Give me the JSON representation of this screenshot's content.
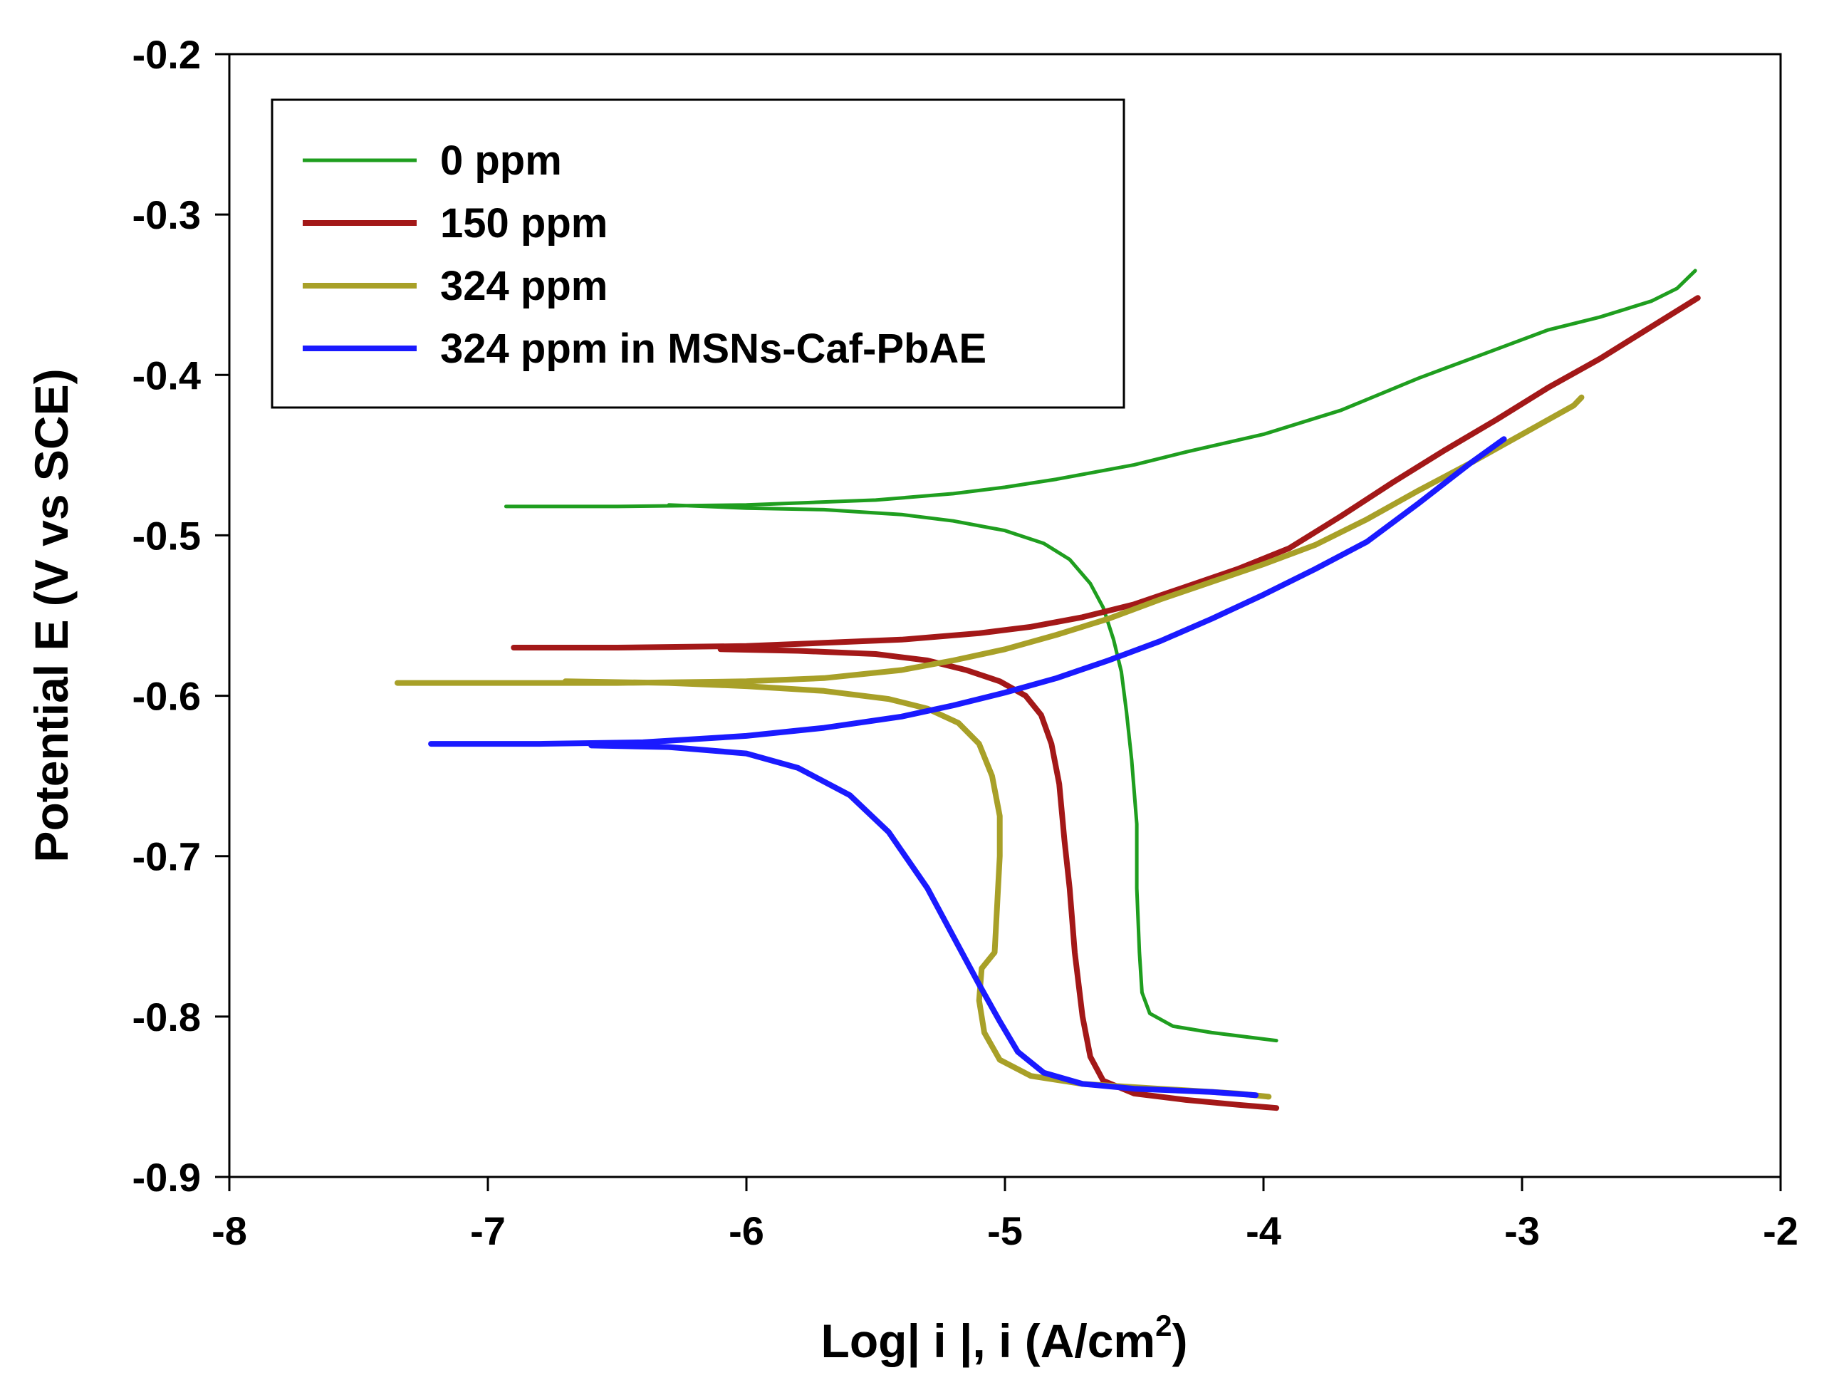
{
  "chart_data": {
    "type": "line",
    "title": "",
    "xlabel": "Log| i |, i (A/cm",
    "xlabel_superscript": "2",
    "xlabel_suffix": ")",
    "ylabel": "Potential E (V vs SCE)",
    "xlim": [
      -8,
      -2
    ],
    "ylim": [
      -0.9,
      -0.2
    ],
    "x_ticks": [
      -8,
      -7,
      -6,
      -5,
      -4,
      -3,
      -2
    ],
    "x_tick_labels": [
      "-8",
      "-7",
      "-6",
      "-5",
      "-4",
      "-3",
      "-2"
    ],
    "y_ticks": [
      -0.2,
      -0.3,
      -0.4,
      -0.5,
      -0.6,
      -0.7,
      -0.8,
      -0.9
    ],
    "y_tick_labels": [
      "-0.2",
      "-0.3",
      "-0.4",
      "-0.5",
      "-0.6",
      "-0.7",
      "-0.8",
      "-0.9"
    ],
    "grid": false,
    "legend_position": "top-left",
    "series": [
      {
        "name": "0 ppm",
        "color": "#1f9e1f",
        "points": [
          [
            -6.93,
            -0.482
          ],
          [
            -6.5,
            -0.482
          ],
          [
            -6.0,
            -0.481
          ],
          [
            -5.5,
            -0.478
          ],
          [
            -5.2,
            -0.474
          ],
          [
            -5.0,
            -0.47
          ],
          [
            -4.8,
            -0.465
          ],
          [
            -4.5,
            -0.456
          ],
          [
            -4.3,
            -0.448
          ],
          [
            -4.0,
            -0.437
          ],
          [
            -3.7,
            -0.422
          ],
          [
            -3.4,
            -0.402
          ],
          [
            -3.1,
            -0.384
          ],
          [
            -2.9,
            -0.372
          ],
          [
            -2.7,
            -0.364
          ],
          [
            -2.5,
            -0.354
          ],
          [
            -2.4,
            -0.346
          ],
          [
            -2.33,
            -0.335
          ],
          null,
          [
            -6.3,
            -0.481
          ],
          [
            -6.0,
            -0.483
          ],
          [
            -5.7,
            -0.484
          ],
          [
            -5.4,
            -0.487
          ],
          [
            -5.2,
            -0.491
          ],
          [
            -5.0,
            -0.497
          ],
          [
            -4.85,
            -0.505
          ],
          [
            -4.75,
            -0.515
          ],
          [
            -4.67,
            -0.53
          ],
          [
            -4.62,
            -0.545
          ],
          [
            -4.58,
            -0.565
          ],
          [
            -4.55,
            -0.585
          ],
          [
            -4.53,
            -0.61
          ],
          [
            -4.51,
            -0.64
          ],
          [
            -4.49,
            -0.68
          ],
          [
            -4.49,
            -0.72
          ],
          [
            -4.48,
            -0.76
          ],
          [
            -4.47,
            -0.785
          ],
          [
            -4.44,
            -0.798
          ],
          [
            -4.35,
            -0.806
          ],
          [
            -4.2,
            -0.81
          ],
          [
            -4.05,
            -0.813
          ],
          [
            -3.95,
            -0.815
          ]
        ]
      },
      {
        "name": "150 ppm",
        "color": "#a31818",
        "points": [
          [
            -6.9,
            -0.57
          ],
          [
            -6.5,
            -0.57
          ],
          [
            -6.0,
            -0.569
          ],
          [
            -5.7,
            -0.567
          ],
          [
            -5.4,
            -0.565
          ],
          [
            -5.1,
            -0.561
          ],
          [
            -4.9,
            -0.557
          ],
          [
            -4.7,
            -0.551
          ],
          [
            -4.5,
            -0.543
          ],
          [
            -4.3,
            -0.532
          ],
          [
            -4.1,
            -0.521
          ],
          [
            -3.9,
            -0.508
          ],
          [
            -3.7,
            -0.488
          ],
          [
            -3.5,
            -0.467
          ],
          [
            -3.3,
            -0.447
          ],
          [
            -3.1,
            -0.428
          ],
          [
            -2.9,
            -0.408
          ],
          [
            -2.7,
            -0.39
          ],
          [
            -2.5,
            -0.37
          ],
          [
            -2.32,
            -0.352
          ],
          null,
          [
            -6.1,
            -0.571
          ],
          [
            -5.8,
            -0.572
          ],
          [
            -5.5,
            -0.574
          ],
          [
            -5.3,
            -0.578
          ],
          [
            -5.15,
            -0.584
          ],
          [
            -5.02,
            -0.591
          ],
          [
            -4.92,
            -0.6
          ],
          [
            -4.86,
            -0.612
          ],
          [
            -4.82,
            -0.63
          ],
          [
            -4.79,
            -0.655
          ],
          [
            -4.77,
            -0.69
          ],
          [
            -4.75,
            -0.72
          ],
          [
            -4.73,
            -0.76
          ],
          [
            -4.7,
            -0.8
          ],
          [
            -4.67,
            -0.825
          ],
          [
            -4.62,
            -0.84
          ],
          [
            -4.5,
            -0.848
          ],
          [
            -4.3,
            -0.852
          ],
          [
            -4.1,
            -0.855
          ],
          [
            -3.95,
            -0.857
          ]
        ]
      },
      {
        "name": "324 ppm",
        "color": "#a8a028",
        "points": [
          [
            -7.35,
            -0.592
          ],
          [
            -7.0,
            -0.592
          ],
          [
            -6.5,
            -0.592
          ],
          [
            -6.0,
            -0.591
          ],
          [
            -5.7,
            -0.589
          ],
          [
            -5.4,
            -0.584
          ],
          [
            -5.2,
            -0.578
          ],
          [
            -5.0,
            -0.571
          ],
          [
            -4.8,
            -0.562
          ],
          [
            -4.6,
            -0.552
          ],
          [
            -4.4,
            -0.54
          ],
          [
            -4.2,
            -0.529
          ],
          [
            -4.0,
            -0.518
          ],
          [
            -3.8,
            -0.506
          ],
          [
            -3.6,
            -0.49
          ],
          [
            -3.4,
            -0.472
          ],
          [
            -3.2,
            -0.455
          ],
          [
            -3.0,
            -0.437
          ],
          [
            -2.8,
            -0.419
          ],
          [
            -2.77,
            -0.414
          ],
          null,
          [
            -6.7,
            -0.591
          ],
          [
            -6.3,
            -0.592
          ],
          [
            -6.0,
            -0.594
          ],
          [
            -5.7,
            -0.597
          ],
          [
            -5.45,
            -0.602
          ],
          [
            -5.3,
            -0.608
          ],
          [
            -5.18,
            -0.617
          ],
          [
            -5.1,
            -0.63
          ],
          [
            -5.05,
            -0.65
          ],
          [
            -5.02,
            -0.675
          ],
          [
            -5.02,
            -0.7
          ],
          [
            -5.03,
            -0.73
          ],
          [
            -5.04,
            -0.76
          ],
          [
            -5.09,
            -0.77
          ],
          [
            -5.1,
            -0.79
          ],
          [
            -5.08,
            -0.81
          ],
          [
            -5.02,
            -0.827
          ],
          [
            -4.9,
            -0.837
          ],
          [
            -4.7,
            -0.842
          ],
          [
            -4.4,
            -0.845
          ],
          [
            -4.1,
            -0.848
          ],
          [
            -3.98,
            -0.85
          ]
        ]
      },
      {
        "name": "324 ppm in MSNs-Caf-PbAE",
        "color": "#1a1aff",
        "points": [
          [
            -7.22,
            -0.63
          ],
          [
            -6.8,
            -0.63
          ],
          [
            -6.4,
            -0.629
          ],
          [
            -6.0,
            -0.625
          ],
          [
            -5.7,
            -0.62
          ],
          [
            -5.4,
            -0.613
          ],
          [
            -5.2,
            -0.606
          ],
          [
            -5.0,
            -0.598
          ],
          [
            -4.8,
            -0.589
          ],
          [
            -4.6,
            -0.578
          ],
          [
            -4.4,
            -0.566
          ],
          [
            -4.2,
            -0.552
          ],
          [
            -4.0,
            -0.537
          ],
          [
            -3.8,
            -0.521
          ],
          [
            -3.6,
            -0.504
          ],
          [
            -3.4,
            -0.48
          ],
          [
            -3.2,
            -0.455
          ],
          [
            -3.07,
            -0.44
          ],
          null,
          [
            -6.6,
            -0.631
          ],
          [
            -6.3,
            -0.632
          ],
          [
            -6.0,
            -0.636
          ],
          [
            -5.8,
            -0.645
          ],
          [
            -5.6,
            -0.662
          ],
          [
            -5.45,
            -0.685
          ],
          [
            -5.3,
            -0.72
          ],
          [
            -5.2,
            -0.75
          ],
          [
            -5.1,
            -0.78
          ],
          [
            -5.02,
            -0.803
          ],
          [
            -4.95,
            -0.822
          ],
          [
            -4.85,
            -0.835
          ],
          [
            -4.7,
            -0.842
          ],
          [
            -4.5,
            -0.845
          ],
          [
            -4.2,
            -0.847
          ],
          [
            -4.03,
            -0.849
          ]
        ]
      }
    ]
  }
}
